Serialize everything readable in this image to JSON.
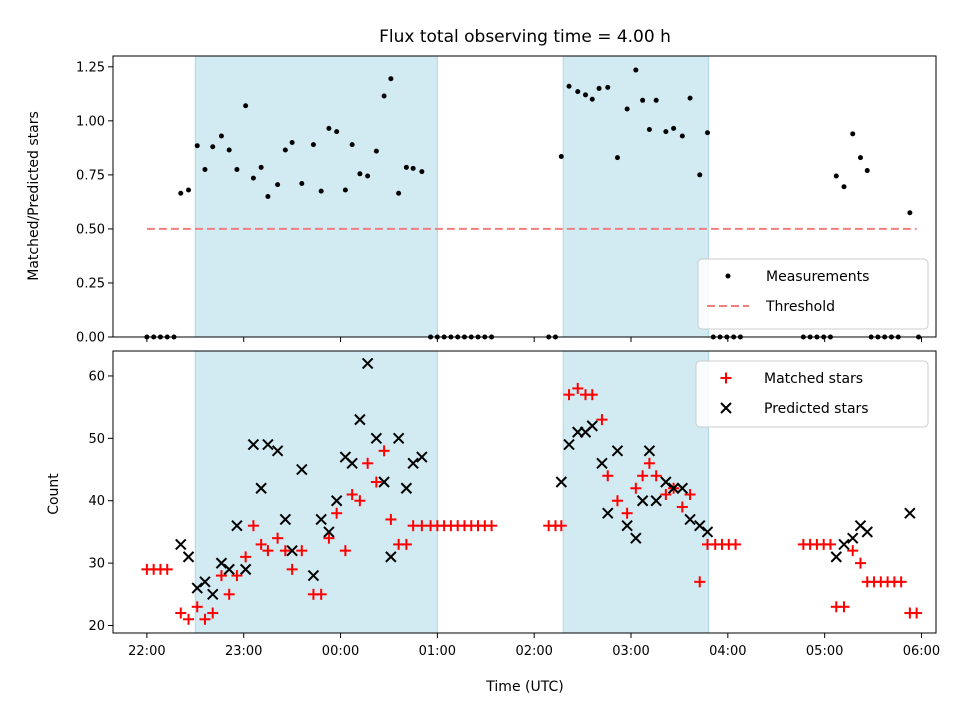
{
  "chart_data": {
    "type": "scatter",
    "title": "Flux total observing time = 4.00 h",
    "xlabel": "Time (UTC)",
    "x_tick_labels": [
      "22:00",
      "23:00",
      "00:00",
      "01:00",
      "02:00",
      "03:00",
      "04:00",
      "05:00",
      "06:00"
    ],
    "x_tick_hours": [
      22,
      23,
      24,
      25,
      26,
      27,
      28,
      29,
      30
    ],
    "xlim_hours": [
      21.65,
      30.15
    ],
    "observing_windows_hours": [
      [
        22.5,
        25.0
      ],
      [
        26.3,
        27.8
      ]
    ],
    "colors": {
      "window": "#add8e6",
      "measurement": "#000000",
      "threshold": "#f08080",
      "matched": "#ff0000",
      "predicted": "#000000"
    },
    "panels": [
      {
        "ylabel": "Matched/Predicted stars",
        "ylim": [
          0,
          1.3
        ],
        "y_ticks": [
          0.0,
          0.25,
          0.5,
          0.75,
          1.0,
          1.25
        ],
        "y_tick_labels": [
          "0.00",
          "0.25",
          "0.50",
          "0.75",
          "1.00",
          "1.25"
        ],
        "legend": [
          "Measurements",
          "Threshold"
        ],
        "legend_position": "lower right",
        "threshold": {
          "value": 0.5,
          "x_range": [
            22.0,
            29.95
          ]
        },
        "measurements": [
          [
            22.0,
            0
          ],
          [
            22.07,
            0
          ],
          [
            22.14,
            0
          ],
          [
            22.21,
            0
          ],
          [
            22.28,
            0
          ],
          [
            22.35,
            0.665
          ],
          [
            22.43,
            0.68
          ],
          [
            22.52,
            0.885
          ],
          [
            22.6,
            0.775
          ],
          [
            22.68,
            0.88
          ],
          [
            22.77,
            0.93
          ],
          [
            22.85,
            0.865
          ],
          [
            22.93,
            0.775
          ],
          [
            23.02,
            1.07
          ],
          [
            23.1,
            0.735
          ],
          [
            23.18,
            0.785
          ],
          [
            23.25,
            0.65
          ],
          [
            23.35,
            0.705
          ],
          [
            23.43,
            0.865
          ],
          [
            23.5,
            0.9
          ],
          [
            23.6,
            0.71
          ],
          [
            23.72,
            0.89
          ],
          [
            23.8,
            0.675
          ],
          [
            23.88,
            0.965
          ],
          [
            23.96,
            0.95
          ],
          [
            24.05,
            0.68
          ],
          [
            24.12,
            0.89
          ],
          [
            24.2,
            0.755
          ],
          [
            24.28,
            0.745
          ],
          [
            24.37,
            0.86
          ],
          [
            24.45,
            1.115
          ],
          [
            24.52,
            1.195
          ],
          [
            24.6,
            0.665
          ],
          [
            24.68,
            0.785
          ],
          [
            24.75,
            0.78
          ],
          [
            24.84,
            0.765
          ],
          [
            24.93,
            0
          ],
          [
            25.0,
            0
          ],
          [
            25.07,
            0
          ],
          [
            25.14,
            0
          ],
          [
            25.21,
            0
          ],
          [
            25.28,
            0
          ],
          [
            25.35,
            0
          ],
          [
            25.42,
            0
          ],
          [
            25.49,
            0
          ],
          [
            25.56,
            0
          ],
          [
            26.15,
            0
          ],
          [
            26.22,
            0
          ],
          [
            26.28,
            0.835
          ],
          [
            26.36,
            1.16
          ],
          [
            26.45,
            1.135
          ],
          [
            26.53,
            1.12
          ],
          [
            26.6,
            1.1
          ],
          [
            26.67,
            1.15
          ],
          [
            26.76,
            1.155
          ],
          [
            26.86,
            0.83
          ],
          [
            26.96,
            1.055
          ],
          [
            27.05,
            1.235
          ],
          [
            27.12,
            1.095
          ],
          [
            27.19,
            0.96
          ],
          [
            27.26,
            1.095
          ],
          [
            27.36,
            0.95
          ],
          [
            27.44,
            0.965
          ],
          [
            27.53,
            0.93
          ],
          [
            27.61,
            1.105
          ],
          [
            27.71,
            0.75
          ],
          [
            27.79,
            0.945
          ],
          [
            27.85,
            0
          ],
          [
            27.92,
            0
          ],
          [
            27.99,
            0
          ],
          [
            28.06,
            0
          ],
          [
            28.13,
            0
          ],
          [
            28.78,
            0
          ],
          [
            28.85,
            0
          ],
          [
            28.92,
            0
          ],
          [
            28.99,
            0
          ],
          [
            29.06,
            0
          ],
          [
            29.12,
            0.745
          ],
          [
            29.2,
            0.695
          ],
          [
            29.29,
            0.94
          ],
          [
            29.37,
            0.83
          ],
          [
            29.44,
            0.77
          ],
          [
            29.48,
            0
          ],
          [
            29.55,
            0
          ],
          [
            29.62,
            0
          ],
          [
            29.69,
            0
          ],
          [
            29.76,
            0
          ],
          [
            29.88,
            0.575
          ],
          [
            29.97,
            0
          ]
        ]
      },
      {
        "ylabel": "Count",
        "ylim": [
          18.8,
          64.0
        ],
        "y_ticks": [
          20,
          30,
          40,
          50,
          60
        ],
        "y_tick_labels": [
          "20",
          "30",
          "40",
          "50",
          "60"
        ],
        "legend": [
          "Matched stars",
          "Predicted stars"
        ],
        "legend_position": "upper right",
        "matched_stars": [
          [
            22.0,
            29
          ],
          [
            22.07,
            29
          ],
          [
            22.14,
            29
          ],
          [
            22.21,
            29
          ],
          [
            22.35,
            22
          ],
          [
            22.43,
            21
          ],
          [
            22.52,
            23
          ],
          [
            22.6,
            21
          ],
          [
            22.68,
            22
          ],
          [
            22.77,
            28
          ],
          [
            22.85,
            25
          ],
          [
            22.93,
            28
          ],
          [
            23.02,
            31
          ],
          [
            23.1,
            36
          ],
          [
            23.18,
            33
          ],
          [
            23.25,
            32
          ],
          [
            23.35,
            34
          ],
          [
            23.43,
            32
          ],
          [
            23.5,
            29
          ],
          [
            23.6,
            32
          ],
          [
            23.72,
            25
          ],
          [
            23.8,
            25
          ],
          [
            23.88,
            34
          ],
          [
            23.96,
            38
          ],
          [
            24.05,
            32
          ],
          [
            24.12,
            41
          ],
          [
            24.2,
            40
          ],
          [
            24.28,
            46
          ],
          [
            24.37,
            43
          ],
          [
            24.45,
            48
          ],
          [
            24.52,
            37
          ],
          [
            24.6,
            33
          ],
          [
            24.68,
            33
          ],
          [
            24.75,
            36
          ],
          [
            24.84,
            36
          ],
          [
            24.93,
            36
          ],
          [
            25.0,
            36
          ],
          [
            25.07,
            36
          ],
          [
            25.14,
            36
          ],
          [
            25.21,
            36
          ],
          [
            25.28,
            36
          ],
          [
            25.35,
            36
          ],
          [
            25.42,
            36
          ],
          [
            25.49,
            36
          ],
          [
            25.56,
            36
          ],
          [
            26.15,
            36
          ],
          [
            26.22,
            36
          ],
          [
            26.28,
            36
          ],
          [
            26.36,
            57
          ],
          [
            26.45,
            58
          ],
          [
            26.53,
            57
          ],
          [
            26.6,
            57
          ],
          [
            26.7,
            53
          ],
          [
            26.76,
            44
          ],
          [
            26.86,
            40
          ],
          [
            26.96,
            38
          ],
          [
            27.05,
            42
          ],
          [
            27.12,
            44
          ],
          [
            27.19,
            46
          ],
          [
            27.26,
            44
          ],
          [
            27.36,
            41
          ],
          [
            27.44,
            42
          ],
          [
            27.53,
            39
          ],
          [
            27.61,
            41
          ],
          [
            27.71,
            27
          ],
          [
            27.79,
            33
          ],
          [
            27.87,
            33
          ],
          [
            27.94,
            33
          ],
          [
            28.01,
            33
          ],
          [
            28.08,
            33
          ],
          [
            28.78,
            33
          ],
          [
            28.85,
            33
          ],
          [
            28.92,
            33
          ],
          [
            28.99,
            33
          ],
          [
            29.06,
            33
          ],
          [
            29.12,
            23
          ],
          [
            29.2,
            23
          ],
          [
            29.29,
            32
          ],
          [
            29.37,
            30
          ],
          [
            29.44,
            27
          ],
          [
            29.51,
            27
          ],
          [
            29.58,
            27
          ],
          [
            29.65,
            27
          ],
          [
            29.72,
            27
          ],
          [
            29.79,
            27
          ],
          [
            29.88,
            22
          ],
          [
            29.95,
            22
          ]
        ],
        "predicted_stars": [
          [
            22.35,
            33
          ],
          [
            22.43,
            31
          ],
          [
            22.52,
            26
          ],
          [
            22.6,
            27
          ],
          [
            22.68,
            25
          ],
          [
            22.77,
            30
          ],
          [
            22.85,
            29
          ],
          [
            22.93,
            36
          ],
          [
            23.02,
            29
          ],
          [
            23.1,
            49
          ],
          [
            23.18,
            42
          ],
          [
            23.25,
            49
          ],
          [
            23.35,
            48
          ],
          [
            23.43,
            37
          ],
          [
            23.5,
            32
          ],
          [
            23.6,
            45
          ],
          [
            23.72,
            28
          ],
          [
            23.8,
            37
          ],
          [
            23.88,
            35
          ],
          [
            23.96,
            40
          ],
          [
            24.05,
            47
          ],
          [
            24.12,
            46
          ],
          [
            24.2,
            53
          ],
          [
            24.28,
            62
          ],
          [
            24.37,
            50
          ],
          [
            24.45,
            43
          ],
          [
            24.52,
            31
          ],
          [
            24.6,
            50
          ],
          [
            24.68,
            42
          ],
          [
            24.75,
            46
          ],
          [
            24.84,
            47
          ],
          [
            26.28,
            43
          ],
          [
            26.36,
            49
          ],
          [
            26.45,
            51
          ],
          [
            26.53,
            51
          ],
          [
            26.6,
            52
          ],
          [
            26.7,
            46
          ],
          [
            26.76,
            38
          ],
          [
            26.86,
            48
          ],
          [
            26.96,
            36
          ],
          [
            27.05,
            34
          ],
          [
            27.12,
            40
          ],
          [
            27.19,
            48
          ],
          [
            27.26,
            40
          ],
          [
            27.36,
            43
          ],
          [
            27.44,
            42
          ],
          [
            27.53,
            42
          ],
          [
            27.61,
            37
          ],
          [
            27.71,
            36
          ],
          [
            27.79,
            35
          ],
          [
            29.12,
            31
          ],
          [
            29.2,
            33
          ],
          [
            29.29,
            34
          ],
          [
            29.37,
            36
          ],
          [
            29.44,
            35
          ],
          [
            29.88,
            38
          ]
        ]
      }
    ]
  }
}
